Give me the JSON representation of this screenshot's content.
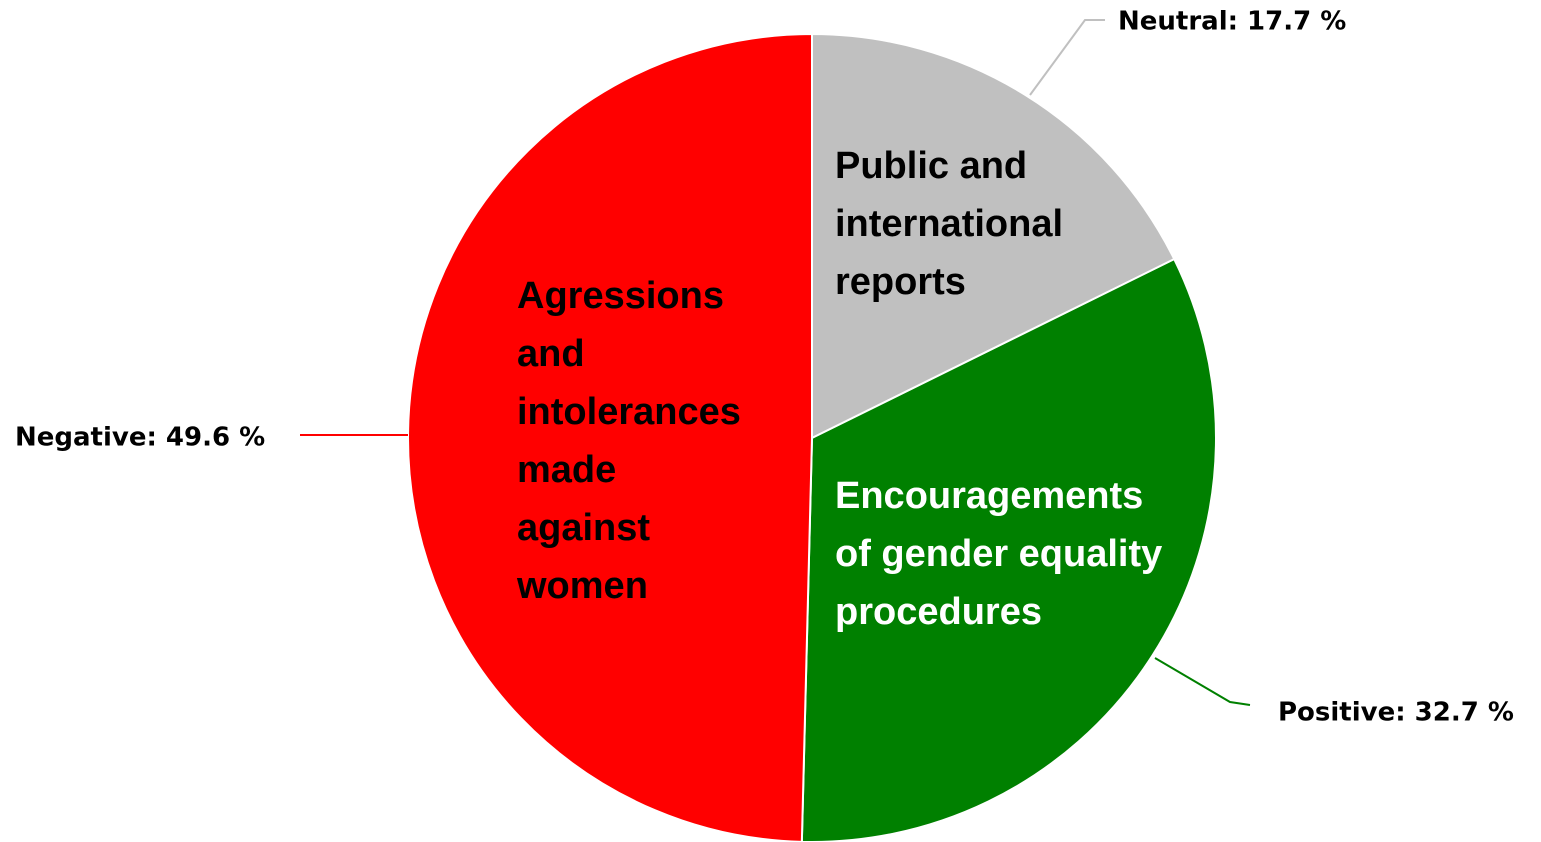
{
  "chart_data": {
    "type": "pie",
    "categories": [
      "Neutral",
      "Positive",
      "Negative"
    ],
    "values": [
      17.7,
      32.7,
      49.6
    ],
    "value_labels": [
      "Neutral: 17.7 %",
      "Positive: 32.7 %",
      "Negative: 49.6 %"
    ],
    "colors": [
      "#c0c0c0",
      "#008000",
      "#ff0000"
    ],
    "descriptions": [
      [
        "Public and",
        "international",
        "reports"
      ],
      [
        "Encouragements",
        "of gender equality",
        "procedures"
      ],
      [
        "Agressions",
        "and",
        "intolerances",
        "made",
        "against",
        "women"
      ]
    ]
  }
}
